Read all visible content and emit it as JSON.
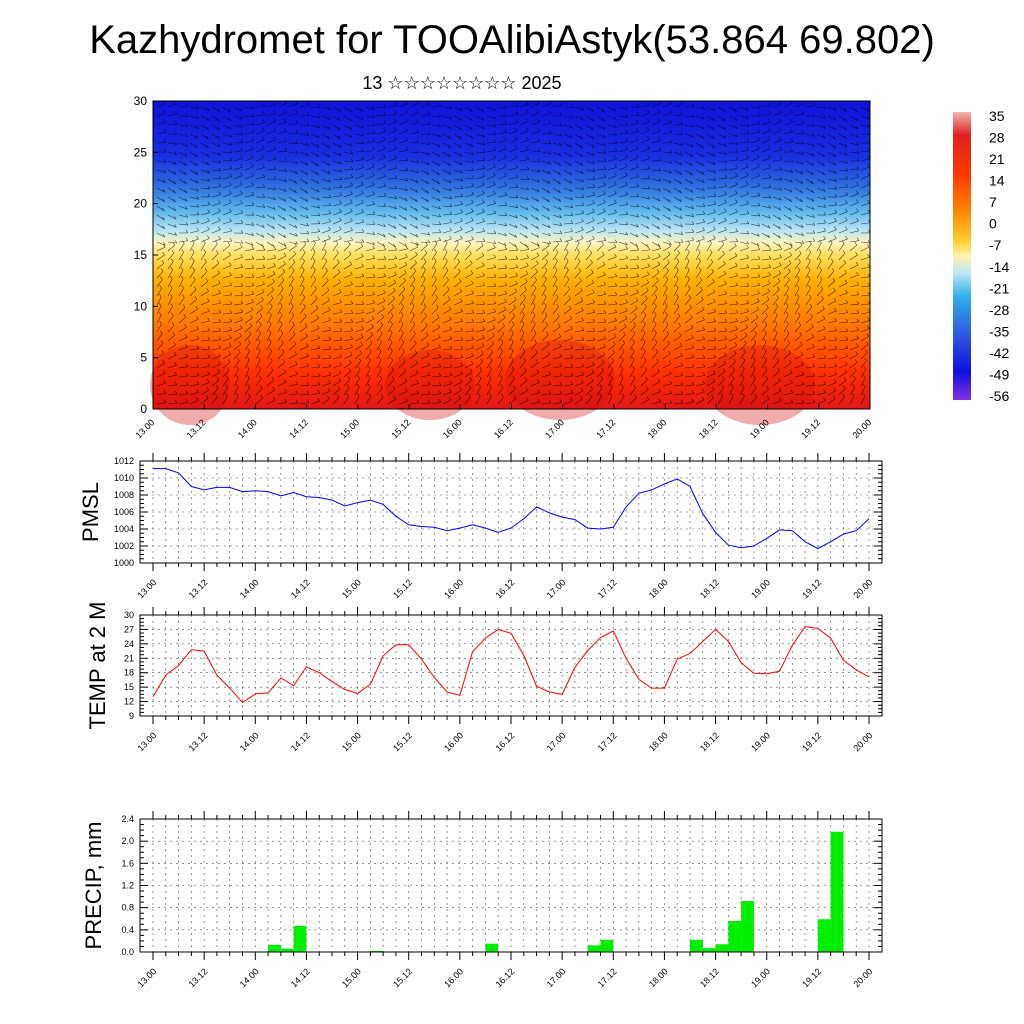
{
  "title": "Kazhydromet for TOOAlibiAstyk(53.864 69.802)",
  "subtitle": "13 ☆☆☆☆☆☆☆☆ 2025",
  "time_ticks": [
    "13.00",
    "13.12",
    "14.00",
    "14.12",
    "15.00",
    "15.12",
    "16.00",
    "16.12",
    "17.00",
    "17.12",
    "18.00",
    "18.12",
    "19.00",
    "19.12",
    "20.00"
  ],
  "chart_data": [
    {
      "type": "heatmap",
      "title": "",
      "ylim": [
        0,
        30
      ],
      "y_ticks": [
        "0",
        "5",
        "10",
        "15",
        "20",
        "25",
        "30"
      ],
      "x_ticks": [
        "13.00",
        "13.12",
        "14.00",
        "14.12",
        "15.00",
        "15.12",
        "16.00",
        "16.12",
        "17.00",
        "17.12",
        "18.00",
        "18.12",
        "19.00",
        "19.12",
        "20.00"
      ],
      "colorbar_labels": [
        "35",
        "28",
        "21",
        "14",
        "7",
        "0",
        "-7",
        "-14",
        "-21",
        "-28",
        "-35",
        "-42",
        "-49",
        "-56"
      ],
      "colors": [
        "#f4b4b4",
        "#e02020",
        "#ff5000",
        "#ffa000",
        "#ffe040",
        "#fff0a0",
        "#b0e0f0",
        "#30b0e8",
        "#3060e0",
        "#1010e0",
        "#8030e0"
      ]
    },
    {
      "type": "line",
      "ylabel": "PMSL",
      "ylim": [
        1000,
        1012
      ],
      "y_ticks": [
        "1000",
        "1002",
        "1004",
        "1006",
        "1008",
        "1010",
        "1012"
      ],
      "color": "#0000ff",
      "x": [
        "13.00",
        "13.03",
        "13.06",
        "13.09",
        "13.12",
        "13.15",
        "13.18",
        "13.21",
        "14.00",
        "14.03",
        "14.06",
        "14.09",
        "14.12",
        "14.15",
        "14.18",
        "14.21",
        "15.00",
        "15.03",
        "15.06",
        "15.09",
        "15.12",
        "15.15",
        "15.18",
        "15.21",
        "16.00",
        "16.03",
        "16.06",
        "16.09",
        "16.12",
        "16.15",
        "16.18",
        "16.21",
        "17.00",
        "17.03",
        "17.06",
        "17.09",
        "17.12",
        "17.15",
        "17.18",
        "17.21",
        "18.00",
        "18.03",
        "18.06",
        "18.09",
        "18.12",
        "18.15",
        "18.18",
        "18.21",
        "19.00",
        "19.03",
        "19.06",
        "19.09",
        "19.12",
        "19.15",
        "19.18",
        "19.21",
        "20.00"
      ],
      "values": [
        1011.1,
        1011.1,
        1010.6,
        1009.0,
        1008.6,
        1008.9,
        1008.9,
        1008.4,
        1008.5,
        1008.4,
        1007.9,
        1008.3,
        1007.8,
        1007.7,
        1007.4,
        1006.7,
        1007.1,
        1007.4,
        1006.9,
        1005.5,
        1004.5,
        1004.3,
        1004.2,
        1003.8,
        1004.1,
        1004.5,
        1004.1,
        1003.6,
        1004.1,
        1005.2,
        1006.6,
        1005.9,
        1005.4,
        1005.1,
        1004.1,
        1004.0,
        1004.2,
        1006.6,
        1008.2,
        1008.6,
        1009.3,
        1009.9,
        1009.0,
        1005.8,
        1003.6,
        1002.1,
        1001.8,
        1002.0,
        1002.9,
        1003.9,
        1003.8,
        1002.5,
        1001.7,
        1002.5,
        1003.4,
        1003.8,
        1005.2
      ]
    },
    {
      "type": "line",
      "ylabel": "TEMP at 2 M",
      "ylim": [
        9,
        30
      ],
      "y_ticks": [
        "9",
        "12",
        "15",
        "18",
        "21",
        "24",
        "27",
        "30"
      ],
      "color": "#ff0000",
      "x": [
        "13.00",
        "13.03",
        "13.06",
        "13.09",
        "13.12",
        "13.15",
        "13.18",
        "13.21",
        "14.00",
        "14.03",
        "14.06",
        "14.09",
        "14.12",
        "14.15",
        "14.18",
        "14.21",
        "15.00",
        "15.03",
        "15.06",
        "15.09",
        "15.12",
        "15.15",
        "15.18",
        "15.21",
        "16.00",
        "16.03",
        "16.06",
        "16.09",
        "16.12",
        "16.15",
        "16.18",
        "16.21",
        "17.00",
        "17.03",
        "17.06",
        "17.09",
        "17.12",
        "17.15",
        "17.18",
        "17.21",
        "18.00",
        "18.03",
        "18.06",
        "18.09",
        "18.12",
        "18.15",
        "18.18",
        "18.21",
        "19.00",
        "19.03",
        "19.06",
        "19.09",
        "19.12",
        "19.15",
        "19.18",
        "19.21",
        "20.00"
      ],
      "values": [
        13.0,
        17.5,
        19.5,
        22.8,
        22.5,
        17.5,
        14.8,
        11.8,
        13.6,
        13.8,
        16.9,
        15.3,
        19.2,
        18.0,
        16.2,
        14.5,
        13.7,
        15.6,
        21.5,
        23.8,
        23.8,
        20.8,
        17.0,
        14.0,
        13.3,
        22.4,
        25.2,
        27.0,
        26.2,
        21.6,
        15.2,
        14.0,
        13.5,
        19.1,
        22.6,
        25.3,
        26.7,
        21.0,
        16.6,
        14.8,
        14.8,
        20.8,
        22.0,
        24.5,
        27.0,
        24.5,
        20.1,
        17.9,
        17.8,
        18.3,
        23.7,
        27.6,
        27.2,
        25.2,
        20.6,
        18.6,
        17.1
      ]
    },
    {
      "type": "bar",
      "ylabel": "PRECIP, mm",
      "ylim": [
        0,
        2.4
      ],
      "y_ticks": [
        "0.0",
        "0.4",
        "0.8",
        "1.2",
        "1.6",
        "2.0",
        "2.4"
      ],
      "color": "#00ee00",
      "x": [
        "13.00",
        "13.03",
        "13.06",
        "13.09",
        "13.12",
        "13.15",
        "13.18",
        "13.21",
        "14.00",
        "14.03",
        "14.06",
        "14.09",
        "14.12",
        "14.15",
        "14.18",
        "14.21",
        "15.00",
        "15.03",
        "15.06",
        "15.09",
        "15.12",
        "15.15",
        "15.18",
        "15.21",
        "16.00",
        "16.03",
        "16.06",
        "16.09",
        "16.12",
        "16.15",
        "16.18",
        "16.21",
        "17.00",
        "17.03",
        "17.06",
        "17.09",
        "17.12",
        "17.15",
        "17.18",
        "17.21",
        "18.00",
        "18.03",
        "18.06",
        "18.09",
        "18.12",
        "18.15",
        "18.18",
        "18.21",
        "19.00",
        "19.03",
        "19.06",
        "19.09",
        "19.12",
        "19.15",
        "19.18",
        "19.21"
      ],
      "values": [
        0,
        0,
        0,
        0,
        0,
        0,
        0,
        0,
        0,
        0.13,
        0.06,
        0.47,
        0,
        0,
        0,
        0,
        0,
        0.02,
        0,
        0,
        0,
        0.01,
        0,
        0,
        0,
        0,
        0.15,
        0,
        0,
        0,
        0,
        0,
        0,
        0,
        0.12,
        0.22,
        0,
        0,
        0,
        0,
        0,
        0,
        0.22,
        0.07,
        0.14,
        0.56,
        0.92,
        0,
        0,
        0,
        0.01,
        0,
        0.59,
        2.17,
        0,
        0
      ]
    }
  ]
}
